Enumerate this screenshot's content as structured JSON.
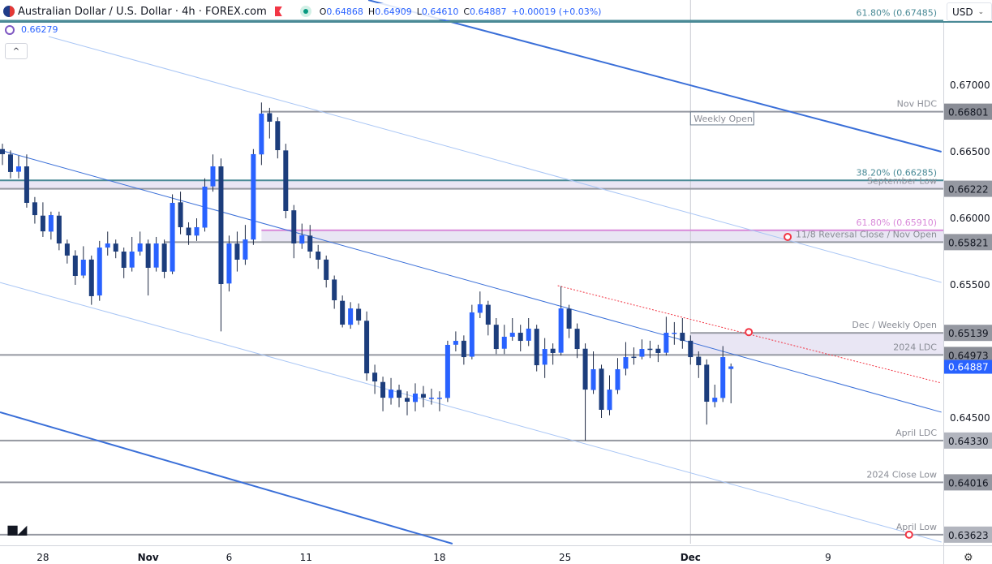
{
  "header": {
    "symbol": "Australian Dollar / U.S. Dollar · 4h · FOREX.com",
    "open_label": "O",
    "open": "0.64868",
    "high_label": "H",
    "high": "0.64909",
    "low_label": "L",
    "low": "0.64610",
    "close_label": "C",
    "close": "0.64887",
    "change": "+0.00019 (+0.03%)"
  },
  "indicator": {
    "value": "0.66279"
  },
  "collapse_label": "^",
  "currency_selector": {
    "value": "USD"
  },
  "logo": "TV",
  "colors": {
    "up": "#2962ff",
    "down": "#1c3d7c",
    "fib": "#4a8a96",
    "fib_pink": "#d98ad9",
    "zone": "#e9e6f4",
    "level": "#9598a1",
    "trend": "#3a6fd8",
    "trend_light": "#a9c6f5",
    "red": "#f23645",
    "last_price": "#2962ff"
  },
  "chart_data": {
    "type": "candlestick",
    "instrument": "AUD/USD",
    "timeframe": "4h",
    "y_ticks": [
      "0.67000",
      "0.66500",
      "0.66000",
      "0.65500",
      "0.64500"
    ],
    "x_ticks": [
      {
        "label": "28",
        "bar": 5
      },
      {
        "label": "Nov",
        "bar": 18
      },
      {
        "label": "6",
        "bar": 28
      },
      {
        "label": "11",
        "bar": 37.5
      },
      {
        "label": "18",
        "bar": 54
      },
      {
        "label": "25",
        "bar": 69.5
      },
      {
        "label": "Dec",
        "bar": 85
      },
      {
        "label": "9",
        "bar": 102
      }
    ],
    "ylim": [
      0.6352,
      0.6764
    ],
    "open": [
      0.6652,
      0.6648,
      0.6635,
      0.6639,
      0.6612,
      0.6602,
      0.659,
      0.6602,
      0.6581,
      0.6572,
      0.6557,
      0.6569,
      0.6542,
      0.6578,
      0.6581,
      0.6575,
      0.6563,
      0.6575,
      0.6581,
      0.6563,
      0.6581,
      0.656,
      0.6612,
      0.6593,
      0.6587,
      0.6593,
      0.6624,
      0.6639,
      0.6551,
      0.6581,
      0.6569,
      0.6584,
      0.6648,
      0.6679,
      0.6673,
      0.6651,
      0.6606,
      0.6581,
      0.6587,
      0.6575,
      0.6569,
      0.6554,
      0.6538,
      0.652,
      0.6532,
      0.6523,
      0.6484,
      0.6477,
      0.6465,
      0.6471,
      0.6465,
      0.6462,
      0.6468,
      0.6465,
      0.6465,
      0.6465,
      0.6505,
      0.6508,
      0.6496,
      0.6529,
      0.6535,
      0.652,
      0.6502,
      0.6511,
      0.6514,
      0.6508,
      0.6517,
      0.649,
      0.6502,
      0.6499,
      0.6532,
      0.6517,
      0.6502,
      0.6471,
      0.6487,
      0.6456,
      0.6471,
      0.6487,
      0.6496,
      0.6496,
      0.6502,
      0.6502,
      0.6499,
      0.6514,
      0.6514,
      0.6508,
      0.6496,
      0.649,
      0.6462,
      0.6465,
      0.64868
    ],
    "high": [
      0.6656,
      0.6651,
      0.6647,
      0.6648,
      0.6616,
      0.6612,
      0.6605,
      0.6605,
      0.6584,
      0.6576,
      0.6579,
      0.6572,
      0.6583,
      0.659,
      0.6584,
      0.6578,
      0.6586,
      0.659,
      0.6584,
      0.6586,
      0.6584,
      0.6618,
      0.662,
      0.6597,
      0.66,
      0.663,
      0.6648,
      0.6645,
      0.6587,
      0.659,
      0.6595,
      0.6652,
      0.6687,
      0.6683,
      0.6676,
      0.6656,
      0.661,
      0.6596,
      0.6595,
      0.658,
      0.6572,
      0.6557,
      0.6542,
      0.6537,
      0.6536,
      0.653,
      0.649,
      0.6481,
      0.648,
      0.6475,
      0.647,
      0.6476,
      0.6474,
      0.6472,
      0.647,
      0.6508,
      0.6515,
      0.6512,
      0.6535,
      0.6545,
      0.6538,
      0.6525,
      0.652,
      0.6525,
      0.652,
      0.6525,
      0.652,
      0.651,
      0.6506,
      0.6549,
      0.6535,
      0.6521,
      0.6506,
      0.65,
      0.649,
      0.6482,
      0.6495,
      0.6507,
      0.6503,
      0.6509,
      0.6508,
      0.6505,
      0.6526,
      0.6522,
      0.6525,
      0.6512,
      0.65,
      0.6494,
      0.6475,
      0.6504,
      0.64909
    ],
    "low": [
      0.664,
      0.663,
      0.663,
      0.6608,
      0.6596,
      0.6586,
      0.6584,
      0.6576,
      0.6566,
      0.655,
      0.6555,
      0.6535,
      0.6538,
      0.6572,
      0.657,
      0.6555,
      0.656,
      0.6572,
      0.6542,
      0.656,
      0.6555,
      0.6558,
      0.6588,
      0.658,
      0.6583,
      0.659,
      0.662,
      0.6515,
      0.6545,
      0.656,
      0.6565,
      0.658,
      0.664,
      0.666,
      0.6645,
      0.66,
      0.657,
      0.6577,
      0.657,
      0.6562,
      0.6548,
      0.6532,
      0.6518,
      0.6517,
      0.652,
      0.6478,
      0.6468,
      0.6455,
      0.646,
      0.6458,
      0.6452,
      0.6455,
      0.6458,
      0.646,
      0.6455,
      0.6462,
      0.65,
      0.649,
      0.6494,
      0.6525,
      0.6512,
      0.6498,
      0.6498,
      0.6508,
      0.65,
      0.6504,
      0.6485,
      0.648,
      0.649,
      0.6497,
      0.651,
      0.6495,
      0.6433,
      0.6468,
      0.645,
      0.6452,
      0.6468,
      0.6482,
      0.649,
      0.6494,
      0.6495,
      0.6492,
      0.6497,
      0.6505,
      0.6502,
      0.649,
      0.648,
      0.6445,
      0.6458,
      0.6462,
      0.6461
    ],
    "close": [
      0.66482,
      0.66348,
      0.6639,
      0.66116,
      0.66024,
      0.65902,
      0.66024,
      0.65811,
      0.6572,
      0.65567,
      0.65689,
      0.65415,
      0.6578,
      0.65811,
      0.6575,
      0.65628,
      0.6575,
      0.65811,
      0.65628,
      0.65811,
      0.65598,
      0.66116,
      0.65933,
      0.65872,
      0.65933,
      0.66238,
      0.6639,
      0.65506,
      0.65811,
      0.65689,
      0.65841,
      0.66482,
      0.66787,
      0.66726,
      0.66512,
      0.66055,
      0.65811,
      0.65872,
      0.6575,
      0.65689,
      0.65537,
      0.65384,
      0.65201,
      0.65323,
      0.65232,
      0.64835,
      0.64774,
      0.64652,
      0.64713,
      0.64652,
      0.64622,
      0.64683,
      0.64652,
      0.64652,
      0.64652,
      0.65049,
      0.65079,
      0.64957,
      0.65293,
      0.65354,
      0.65201,
      0.65018,
      0.6511,
      0.6514,
      0.65079,
      0.65171,
      0.64896,
      0.65018,
      0.64988,
      0.65323,
      0.65171,
      0.65018,
      0.64713,
      0.64866,
      0.64561,
      0.64713,
      0.64866,
      0.64957,
      0.64957,
      0.65018,
      0.65018,
      0.64988,
      0.6514,
      0.6514,
      0.65079,
      0.64957,
      0.64896,
      0.64622,
      0.64652,
      0.64957,
      0.64887
    ],
    "last_price": "0.64887",
    "levels": [
      {
        "price": 0.67485,
        "label": "61.80% (0.67485)",
        "kind": "fib",
        "from_bar": -1
      },
      {
        "price": 0.66801,
        "label": "Nov HDC",
        "tag": "0.66801",
        "kind": "level",
        "from_bar": 32,
        "tag_bg": "#8a8d96"
      },
      {
        "price": 0.66285,
        "label": "38.20% (0.66285)",
        "kind": "fib",
        "from_bar": -1
      },
      {
        "price": 0.66222,
        "label": "September Low",
        "tag": "0.66222",
        "kind": "level",
        "from_bar": -1,
        "tag_bg": "#9598a1"
      },
      {
        "price": 0.6591,
        "label": "61.80% (0.65910)",
        "kind": "fib_pink",
        "from_bar": 32
      },
      {
        "price": 0.65821,
        "label": "11/8 Reversal Close / Nov Open",
        "tag": "0.65821",
        "kind": "level",
        "from_bar": 20,
        "tag_bg": "#9598a1"
      },
      {
        "price": 0.65139,
        "label": "Dec / Weekly Open",
        "tag": "0.65139",
        "kind": "level",
        "from_bar": 85,
        "tag_bg": "#9598a1"
      },
      {
        "price": 0.64973,
        "label": "2024 LDC",
        "tag": "0.64973",
        "kind": "level",
        "from_bar": -1,
        "tag_bg": "#8a8d96"
      },
      {
        "price": 0.6433,
        "label": "April LDC",
        "tag": "0.64330",
        "kind": "level",
        "from_bar": -1,
        "tag_bg": "#b2b5be"
      },
      {
        "price": 0.64016,
        "label": "2024 Close Low",
        "tag": "0.64016",
        "kind": "level",
        "from_bar": -1,
        "tag_bg": "#9598a1"
      },
      {
        "price": 0.63623,
        "label": "April Low",
        "tag": "0.63623",
        "kind": "level",
        "from_bar": -1,
        "tag_bg": "#b2b5be"
      }
    ],
    "zones": [
      {
        "from": 0.66222,
        "to": 0.66285,
        "from_bar": -1
      },
      {
        "from": 0.65821,
        "to": 0.6591,
        "from_bar": 32
      },
      {
        "from": 0.64973,
        "to": 0.65139,
        "from_bar": 85
      }
    ],
    "trendlines": [
      {
        "p1": [
          45.2,
          0.6764
        ],
        "p2": [
          116,
          0.665
        ],
        "style": "thick"
      },
      {
        "p1": [
          -0.3,
          0.64543
        ],
        "p2": [
          55.6,
          0.63555
        ],
        "style": "thick"
      },
      {
        "p1": [
          5.7,
          0.67366
        ],
        "p2": [
          116,
          0.65518
        ],
        "style": "light"
      },
      {
        "p1": [
          -0.3,
          0.66512
        ],
        "p2": [
          116,
          0.64543
        ],
        "style": "mid"
      },
      {
        "p1": [
          -0.3,
          0.65518
        ],
        "p2": [
          116,
          0.63567
        ],
        "style": "light"
      },
      {
        "p1": [
          68.6,
          0.65494
        ],
        "p2": [
          116,
          0.64762
        ],
        "style": "dotted"
      }
    ],
    "markers": [
      [
        92.2,
        0.65145
      ],
      [
        97,
        0.6586
      ],
      [
        112,
        0.63623
      ]
    ],
    "annotation": {
      "label": "Weekly Open",
      "bar": 85,
      "price": 0.6672
    },
    "vertical_line_bar": 85
  }
}
